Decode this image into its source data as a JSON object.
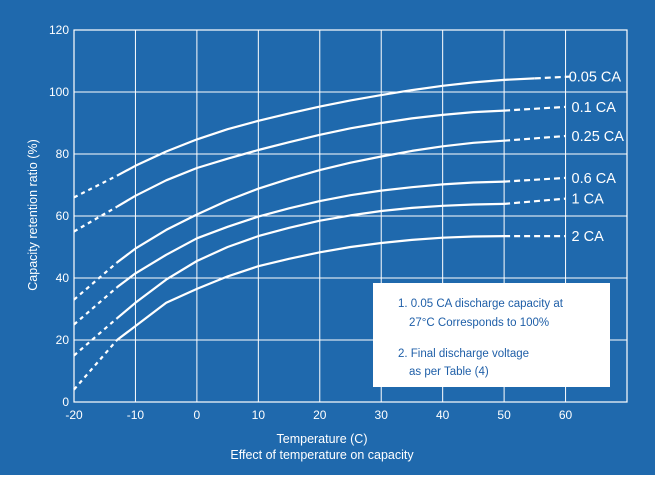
{
  "colors": {
    "background": "#1f69ad",
    "curve": "#ffffff",
    "grid": "#ffffff",
    "note_box": "#ffffff",
    "note_text": "#1f5fa8"
  },
  "chart_data": {
    "type": "line",
    "title": "",
    "xlabel": "Temperature (C)",
    "caption": "Effect of temperature on capacity",
    "ylabel": "Capacity retention ratio (%)",
    "xlim": [
      -20,
      70
    ],
    "ylim": [
      0,
      120
    ],
    "x_ticks": [
      "-20",
      "-10",
      "0",
      "10",
      "20",
      "30",
      "40",
      "50",
      "60"
    ],
    "y_ticks": [
      "0",
      "20",
      "40",
      "60",
      "80",
      "100",
      "120"
    ],
    "grid": true,
    "series": [
      {
        "name": "0.05 CA",
        "solid_x": [
          -13,
          -10,
          -5,
          0,
          5,
          10,
          15,
          20,
          25,
          30,
          35,
          40,
          45,
          50,
          55
        ],
        "solid_y": [
          73,
          76.2,
          80.8,
          84.7,
          88,
          90.7,
          93.1,
          95.3,
          97.3,
          99,
          100.6,
          102,
          103.1,
          103.9,
          104.4
        ],
        "dashed_x": [
          -20,
          -13
        ],
        "dashed_y": [
          66,
          73
        ],
        "ext_x": [
          55,
          61
        ],
        "ext_y": [
          104.4,
          105
        ]
      },
      {
        "name": "0.1 CA",
        "solid_x": [
          -13,
          -10,
          -5,
          0,
          5,
          10,
          15,
          20,
          25,
          30,
          35,
          40,
          45,
          50
        ],
        "solid_y": [
          63,
          66.5,
          71.5,
          75.5,
          78.5,
          81.3,
          83.8,
          86.2,
          88.3,
          90,
          91.5,
          92.6,
          93.5,
          94
        ],
        "dashed_x": [
          -20,
          -13
        ],
        "dashed_y": [
          55,
          63
        ],
        "ext_x": [
          50,
          60
        ],
        "ext_y": [
          94,
          95.2
        ]
      },
      {
        "name": "0.25 CA",
        "solid_x": [
          -13,
          -10,
          -5,
          0,
          5,
          10,
          15,
          20,
          25,
          30,
          35,
          40,
          45,
          50
        ],
        "solid_y": [
          45,
          49.5,
          55.5,
          60.5,
          65,
          68.8,
          72,
          74.8,
          77.2,
          79.2,
          81,
          82.5,
          83.6,
          84.3
        ],
        "dashed_x": [
          -20,
          -13
        ],
        "dashed_y": [
          33,
          45
        ],
        "ext_x": [
          50,
          60
        ],
        "ext_y": [
          84.3,
          85.8
        ]
      },
      {
        "name": "0.6 CA",
        "solid_x": [
          -13,
          -10,
          -5,
          0,
          5,
          10,
          15,
          20,
          25,
          30,
          35,
          40,
          45,
          50
        ],
        "solid_y": [
          37,
          41.5,
          47.5,
          52.8,
          56.5,
          59.8,
          62.5,
          64.8,
          66.7,
          68.2,
          69.3,
          70.2,
          70.8,
          71.1
        ],
        "dashed_x": [
          -20,
          -13
        ],
        "dashed_y": [
          25,
          37
        ],
        "ext_x": [
          50,
          60
        ],
        "ext_y": [
          71.1,
          72.3
        ]
      },
      {
        "name": "1 CA",
        "solid_x": [
          -13,
          -10,
          -5,
          0,
          5,
          10,
          15,
          20,
          25,
          30,
          35,
          40,
          45,
          50
        ],
        "solid_y": [
          27,
          32,
          39.5,
          45.5,
          50,
          53.5,
          56.2,
          58.5,
          60.2,
          61.6,
          62.6,
          63.3,
          63.7,
          63.9
        ],
        "dashed_x": [
          -20,
          -13
        ],
        "dashed_y": [
          15,
          27
        ],
        "ext_x": [
          50,
          60
        ],
        "ext_y": [
          63.9,
          65.6
        ]
      },
      {
        "name": "2 CA",
        "solid_x": [
          -13,
          -10,
          -5,
          0,
          5,
          10,
          15,
          20,
          25,
          30,
          35,
          40,
          45,
          50
        ],
        "solid_y": [
          20,
          24.5,
          32,
          36.5,
          40.5,
          43.8,
          46.2,
          48.3,
          50,
          51.3,
          52.3,
          53,
          53.4,
          53.5
        ],
        "dashed_x": [
          -20,
          -13
        ],
        "dashed_y": [
          4,
          20
        ],
        "ext_x": [
          50,
          60
        ],
        "ext_y": [
          53.5,
          53.5
        ]
      }
    ],
    "annotations": [
      "1.  0.05 CA discharge capacity at",
      "27°C Corresponds to 100%",
      "2.  Final discharge voltage",
      "as per Table (4)"
    ]
  }
}
